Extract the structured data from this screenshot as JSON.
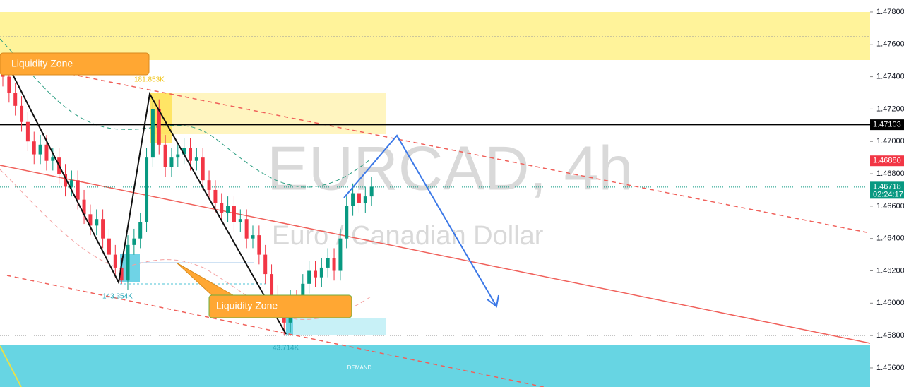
{
  "chart_data": {
    "type": "candlestick",
    "title": "EURCAD, 4h",
    "subtitle": "Euro / Canadian Dollar",
    "annotations": [
      "Liquidity Zone",
      "Liquidity Zone",
      "181.853K",
      "143.354K",
      "43.714K",
      "DEMAND"
    ],
    "up_color": "#089981",
    "down_color": "#f23645",
    "ylim": [
      1.45482,
      1.47874
    ],
    "yticks": [
      {
        "value": 1.478,
        "label": "1.47800"
      },
      {
        "value": 1.476,
        "label": "1.47600"
      },
      {
        "value": 1.474,
        "label": "1.47400"
      },
      {
        "value": 1.472,
        "label": "1.47200"
      },
      {
        "value": 1.47,
        "label": "1.47000"
      },
      {
        "value": 1.468,
        "label": "1.46800"
      },
      {
        "value": 1.466,
        "label": "1.46600"
      },
      {
        "value": 1.464,
        "label": "1.46400"
      },
      {
        "value": 1.462,
        "label": "1.46200"
      },
      {
        "value": 1.46,
        "label": "1.46000"
      },
      {
        "value": 1.458,
        "label": "1.45800"
      },
      {
        "value": 1.456,
        "label": "1.45600"
      }
    ],
    "price_labels": [
      {
        "value": 1.47103,
        "label": "1.47103",
        "color": "#000000"
      },
      {
        "value": 1.4688,
        "label": "1.46880",
        "color": "#f23645"
      },
      {
        "value": 1.46718,
        "label": "1.46718",
        "color": "#089981"
      }
    ],
    "countdown": "02:24:17",
    "open": [
      1.4748,
      1.474,
      1.473,
      1.4722,
      1.4712,
      1.47,
      1.4692,
      1.4698,
      1.4688,
      1.469,
      1.468,
      1.4672,
      1.4676,
      1.4664,
      1.4655,
      1.4648,
      1.4652,
      1.464,
      1.463,
      1.4622,
      1.4614,
      1.4636,
      1.464,
      1.465,
      1.469,
      1.472,
      1.4698,
      1.4684,
      1.469,
      1.4692,
      1.4696,
      1.4688,
      1.469,
      1.4676,
      1.467,
      1.4662,
      1.4656,
      1.466,
      1.465,
      1.4652,
      1.464,
      1.4642,
      1.463,
      1.4618,
      1.4605,
      1.4595,
      1.4588,
      1.4602,
      1.4598,
      1.4612,
      1.462,
      1.4616,
      1.4622,
      1.4628,
      1.462,
      1.464,
      1.466,
      1.4668,
      1.4662,
      1.4666
    ],
    "high": [
      1.4754,
      1.4746,
      1.4736,
      1.4728,
      1.4718,
      1.4706,
      1.4704,
      1.4704,
      1.4696,
      1.4696,
      1.4686,
      1.4682,
      1.4682,
      1.467,
      1.4661,
      1.4658,
      1.4658,
      1.4646,
      1.4636,
      1.4628,
      1.4642,
      1.4646,
      1.4656,
      1.4696,
      1.4728,
      1.4726,
      1.4704,
      1.4696,
      1.4698,
      1.4702,
      1.4702,
      1.4696,
      1.4696,
      1.4682,
      1.4676,
      1.4668,
      1.4666,
      1.4666,
      1.4658,
      1.4658,
      1.4648,
      1.4648,
      1.4636,
      1.4624,
      1.4611,
      1.4601,
      1.4608,
      1.4608,
      1.4618,
      1.4626,
      1.4626,
      1.4628,
      1.4634,
      1.4634,
      1.4646,
      1.4666,
      1.4674,
      1.4674,
      1.4672,
      1.4678
    ],
    "low": [
      1.4734,
      1.4724,
      1.4716,
      1.4706,
      1.4694,
      1.4686,
      1.4686,
      1.4682,
      1.4682,
      1.4674,
      1.4666,
      1.4666,
      1.4658,
      1.4649,
      1.4642,
      1.4642,
      1.4634,
      1.4624,
      1.4616,
      1.4612,
      1.4608,
      1.463,
      1.4634,
      1.4644,
      1.4684,
      1.4692,
      1.4678,
      1.4678,
      1.4684,
      1.4686,
      1.4682,
      1.4682,
      1.467,
      1.4664,
      1.4656,
      1.465,
      1.465,
      1.4644,
      1.4644,
      1.4634,
      1.4634,
      1.4624,
      1.4612,
      1.4599,
      1.4589,
      1.458,
      1.4582,
      1.4592,
      1.4592,
      1.4606,
      1.461,
      1.461,
      1.4616,
      1.4614,
      1.4614,
      1.4634,
      1.4654,
      1.4656,
      1.4656,
      1.466
    ],
    "close": [
      1.474,
      1.473,
      1.4722,
      1.4712,
      1.47,
      1.4692,
      1.4698,
      1.4688,
      1.469,
      1.468,
      1.4672,
      1.4676,
      1.4664,
      1.4655,
      1.4648,
      1.4652,
      1.464,
      1.463,
      1.4622,
      1.4614,
      1.4636,
      1.464,
      1.465,
      1.469,
      1.472,
      1.4698,
      1.4684,
      1.469,
      1.4692,
      1.4696,
      1.4688,
      1.469,
      1.4676,
      1.467,
      1.4662,
      1.4656,
      1.466,
      1.465,
      1.4652,
      1.464,
      1.4642,
      1.463,
      1.4618,
      1.4605,
      1.4595,
      1.4588,
      1.4602,
      1.4598,
      1.4612,
      1.462,
      1.4616,
      1.4622,
      1.4628,
      1.462,
      1.464,
      1.466,
      1.4668,
      1.4662,
      1.4666,
      1.4672
    ]
  }
}
